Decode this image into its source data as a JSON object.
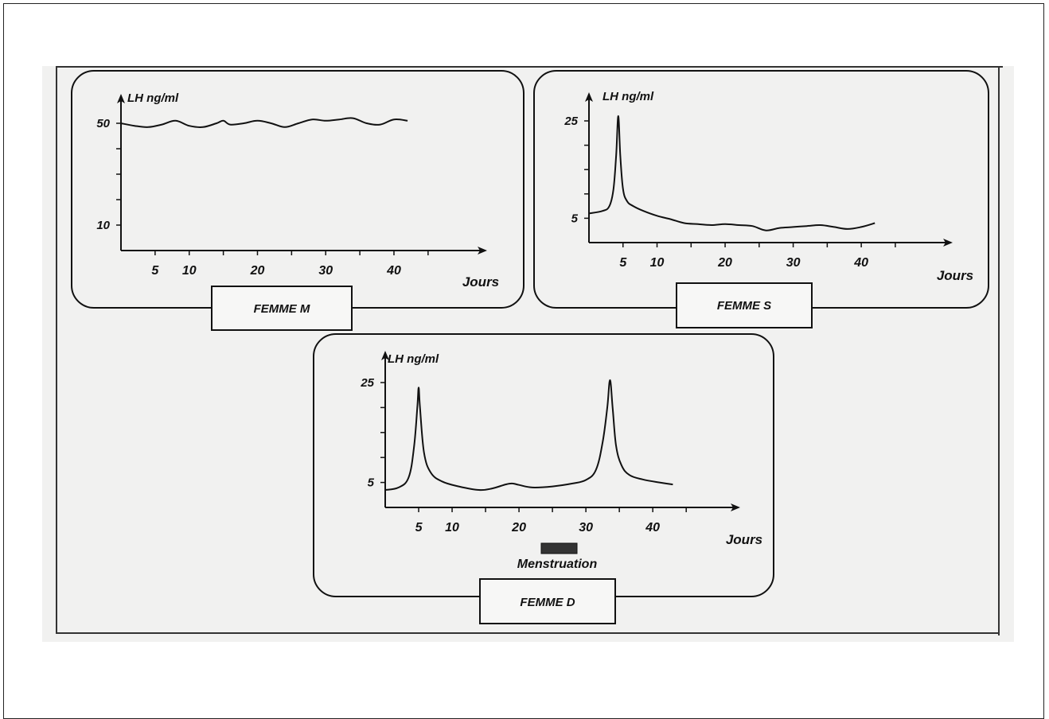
{
  "chart_data": [
    {
      "type": "line",
      "panel_label": "FEMME M",
      "ylabel": "LH ng/ml",
      "xlabel": "Jours",
      "y_ticks": [
        {
          "value": 50,
          "label": "50"
        },
        {
          "value": 10,
          "label": "10"
        }
      ],
      "x_ticks": [
        {
          "value": 5,
          "label": "5"
        },
        {
          "value": 10,
          "label": "10"
        },
        {
          "value": 20,
          "label": "20"
        },
        {
          "value": 30,
          "label": "30"
        },
        {
          "value": 40,
          "label": "40"
        }
      ],
      "xlim": [
        0,
        47
      ],
      "ylim": [
        0,
        55
      ],
      "series": [
        {
          "x": [
            0,
            2,
            4,
            6,
            8,
            10,
            12,
            14,
            15,
            16,
            18,
            20,
            22,
            24,
            26,
            28,
            30,
            32,
            34,
            36,
            38,
            40,
            42
          ],
          "y": [
            50,
            49,
            48.5,
            49.5,
            51,
            49,
            48.5,
            50,
            51,
            49.5,
            50,
            51,
            50,
            48.5,
            50,
            51.5,
            51,
            51.5,
            52,
            50,
            49.5,
            51.5,
            51
          ]
        }
      ]
    },
    {
      "type": "line",
      "panel_label": "FEMME S",
      "ylabel": "LH ng/ml",
      "xlabel": "Jours",
      "y_ticks": [
        {
          "value": 25,
          "label": "25"
        },
        {
          "value": 5,
          "label": "5"
        }
      ],
      "x_ticks": [
        {
          "value": 5,
          "label": "5"
        },
        {
          "value": 10,
          "label": "10"
        },
        {
          "value": 20,
          "label": "20"
        },
        {
          "value": 30,
          "label": "30"
        },
        {
          "value": 40,
          "label": "40"
        }
      ],
      "xlim": [
        0,
        47
      ],
      "ylim": [
        0,
        30
      ],
      "series": [
        {
          "x": [
            0,
            2,
            3,
            3.6,
            4,
            4.3,
            4.6,
            5,
            5.6,
            6.5,
            8,
            10,
            12,
            14,
            16,
            18,
            20,
            22,
            24,
            26,
            28,
            30,
            32,
            34,
            36,
            38,
            40,
            42
          ],
          "y": [
            6,
            6.5,
            7.5,
            11,
            18,
            26,
            18,
            11,
            8.5,
            7.5,
            6.5,
            5.5,
            4.8,
            4,
            3.8,
            3.6,
            3.8,
            3.6,
            3.4,
            2.5,
            3,
            3.2,
            3.4,
            3.6,
            3.2,
            2.8,
            3.2,
            4
          ]
        }
      ]
    },
    {
      "type": "line",
      "panel_label": "FEMME D",
      "ylabel": "LH ng/ml",
      "xlabel": "Jours",
      "annotation": "Menstruation",
      "y_ticks": [
        {
          "value": 25,
          "label": "25"
        },
        {
          "value": 5,
          "label": "5"
        }
      ],
      "x_ticks": [
        {
          "value": 5,
          "label": "5"
        },
        {
          "value": 10,
          "label": "10"
        },
        {
          "value": 20,
          "label": "20"
        },
        {
          "value": 30,
          "label": "30"
        },
        {
          "value": 40,
          "label": "40"
        }
      ],
      "xlim": [
        0,
        47
      ],
      "ylim": [
        0,
        30
      ],
      "series": [
        {
          "x": [
            0,
            2,
            3.5,
            4.3,
            4.8,
            5,
            5.2,
            5.8,
            6.8,
            8.5,
            11,
            14,
            16,
            18,
            19,
            20,
            22,
            25,
            28,
            30,
            31.5,
            32.5,
            33.2,
            33.6,
            34,
            34.5,
            35.3,
            36.5,
            38.5,
            41,
            43
          ],
          "y": [
            3.5,
            4,
            6,
            12,
            20,
            24,
            20,
            11,
            7,
            5.2,
            4.2,
            3.5,
            3.8,
            4.6,
            4.8,
            4.5,
            4,
            4.2,
            4.8,
            5.5,
            7.5,
            13,
            20,
            25.5,
            20,
            12.5,
            8.5,
            6.5,
            5.6,
            5,
            4.6
          ]
        }
      ]
    }
  ]
}
